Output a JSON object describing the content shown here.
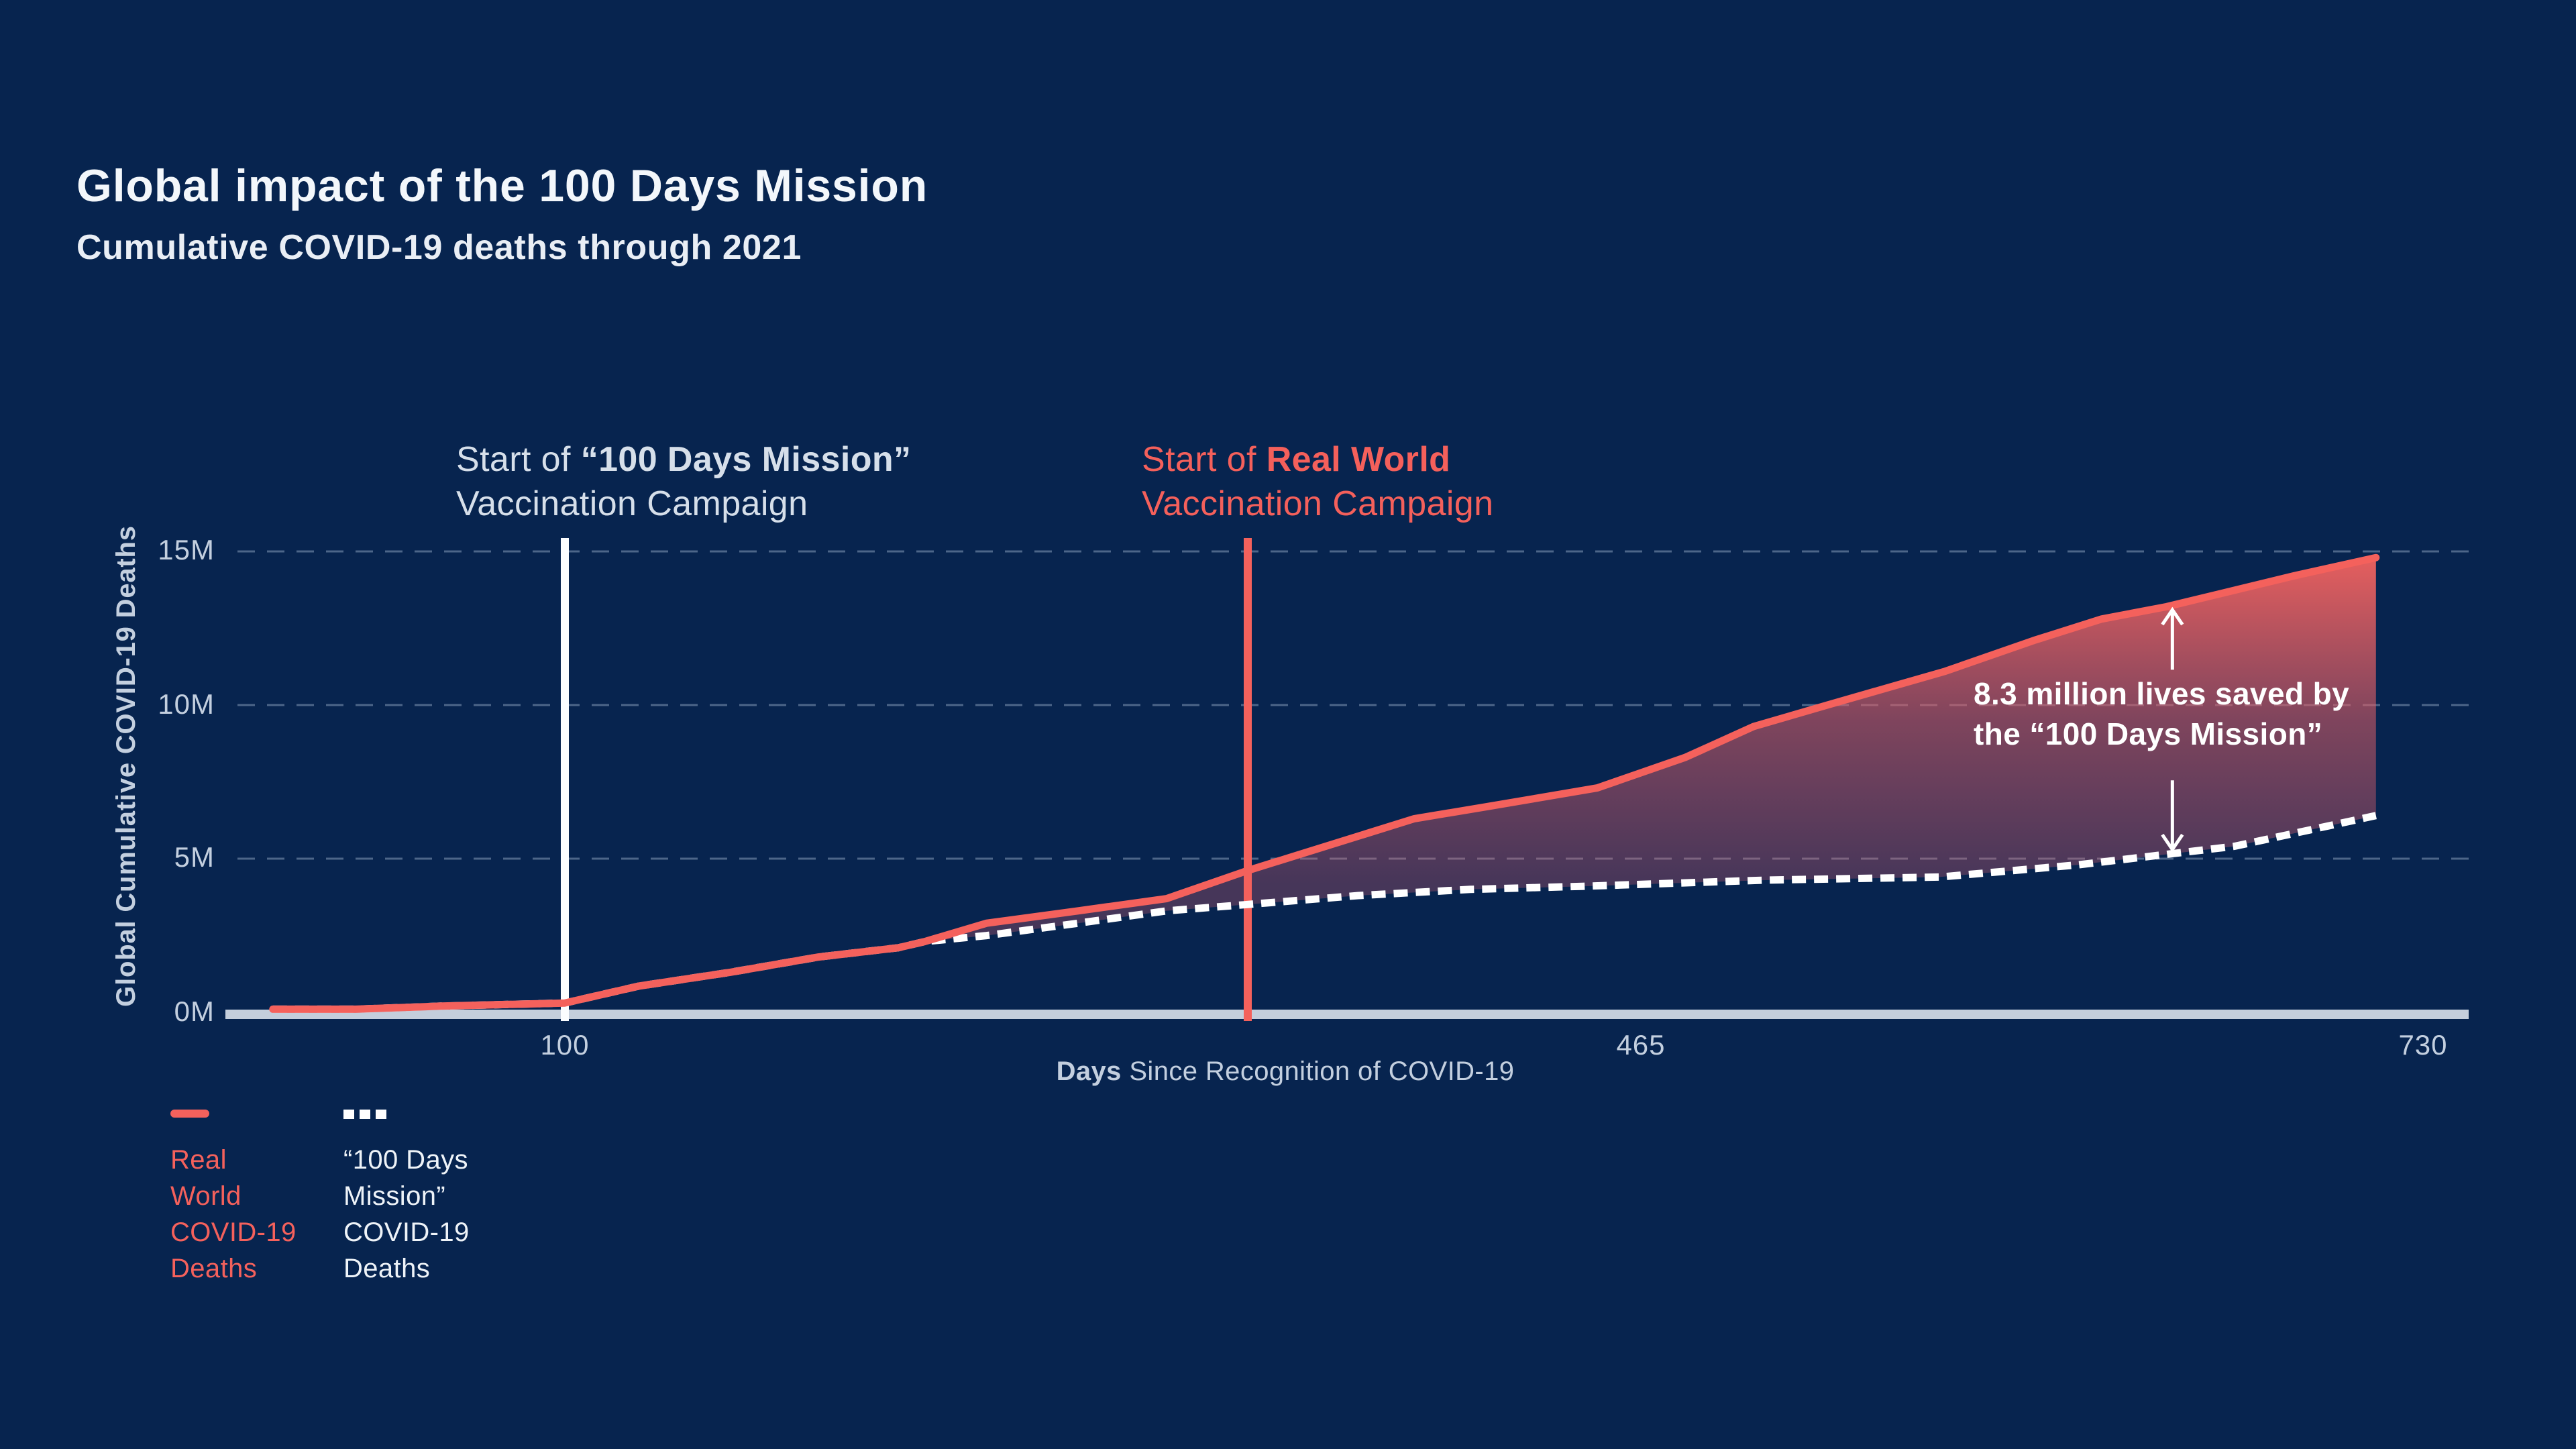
{
  "page": {
    "background": "#07244f",
    "accent": "#f4615c",
    "text_light": "#f3f7fb",
    "text_muted": "#c3cfdf"
  },
  "header": {
    "title": "Global impact of the 100 Days Mission",
    "subtitle": "Cumulative COVID-19 deaths through 2021"
  },
  "annotations": {
    "mission": {
      "prefix": "Start of ",
      "bold": "“100 Days Mission”",
      "line2": "Vaccination Campaign"
    },
    "real_world": {
      "prefix": "Start of ",
      "bold": "Real World",
      "line2": "Vaccination Campaign"
    },
    "lives_saved": {
      "line1": "8.3 million lives saved by",
      "line2": "the “100 Days Mission”"
    }
  },
  "chart_data": {
    "type": "area",
    "title": "Global impact of the 100 Days Mission",
    "subtitle": "Cumulative COVID-19 deaths through 2021",
    "xlabel_bold": "Days",
    "xlabel_rest": " Since Recognition of COVID-19",
    "ylabel": "Global Cumulative COVID-19 Deaths",
    "unit": "million cumulative deaths",
    "xlim": [
      0,
      730
    ],
    "ylim": [
      0,
      15
    ],
    "grid_values": [
      15,
      10,
      5
    ],
    "x_ticks": [
      {
        "value": 100,
        "label": "100"
      },
      {
        "value": 465,
        "label": "465"
      },
      {
        "value": 730,
        "label": "730"
      }
    ],
    "y_ticks": [
      {
        "value": 15,
        "label": "15M"
      },
      {
        "value": 10,
        "label": "10M"
      },
      {
        "value": 5,
        "label": "5M"
      },
      {
        "value": 0,
        "label": "0M"
      }
    ],
    "series": [
      {
        "name": "Real World COVID-19 Deaths",
        "style": "solid",
        "color": "#f4615c",
        "points": [
          [
            1,
            0.1
          ],
          [
            29,
            0.1
          ],
          [
            58,
            0.2
          ],
          [
            100,
            0.3
          ],
          [
            125,
            0.85
          ],
          [
            156,
            1.3
          ],
          [
            186,
            1.8
          ],
          [
            213,
            2.1
          ],
          [
            222,
            2.3
          ],
          [
            243,
            2.9
          ],
          [
            274,
            3.3
          ],
          [
            304,
            3.7
          ],
          [
            331,
            4.6
          ],
          [
            388,
            6.3
          ],
          [
            413,
            6.7
          ],
          [
            450,
            7.3
          ],
          [
            480,
            8.3
          ],
          [
            503,
            9.3
          ],
          [
            528,
            10.0
          ],
          [
            568,
            11.1
          ],
          [
            598,
            12.1
          ],
          [
            621,
            12.8
          ],
          [
            643,
            13.2
          ],
          [
            686,
            14.2
          ],
          [
            714,
            14.8
          ]
        ]
      },
      {
        "name": "“100 Days Mission” COVID-19 Deaths",
        "style": "dashed",
        "color": "#ffffff",
        "points": [
          [
            1,
            0.1
          ],
          [
            29,
            0.1
          ],
          [
            58,
            0.2
          ],
          [
            100,
            0.3
          ],
          [
            125,
            0.85
          ],
          [
            156,
            1.3
          ],
          [
            186,
            1.8
          ],
          [
            213,
            2.1
          ],
          [
            222,
            2.3
          ],
          [
            243,
            2.5
          ],
          [
            274,
            2.9
          ],
          [
            304,
            3.3
          ],
          [
            330,
            3.5
          ],
          [
            369,
            3.8
          ],
          [
            407,
            4.0
          ],
          [
            445,
            4.1
          ],
          [
            507,
            4.3
          ],
          [
            566,
            4.4
          ],
          [
            613,
            4.8
          ],
          [
            666,
            5.4
          ],
          [
            714,
            6.4
          ]
        ]
      }
    ],
    "divergence_day": 222,
    "vlines": [
      {
        "day": 100,
        "color": "#fbfdff",
        "name": "mission-campaign-vline"
      },
      {
        "day": 331.5,
        "color": "#f4615c",
        "name": "real-world-campaign-vline"
      }
    ],
    "saved_arrow": {
      "day": 645,
      "upper_from": 11.15,
      "upper_to": 13.1,
      "lower_from": 7.55,
      "lower_to": 5.3
    },
    "area_gradient": {
      "top": "#f2625e",
      "mid": "#e15f68",
      "bottom": "#d85f70"
    },
    "legend_position": "bottom-left",
    "grid": "dashed-horizontal"
  },
  "legend": {
    "items": [
      {
        "swatch": "dash",
        "color": "#f4615c",
        "lines": [
          "Real",
          "World",
          "COVID-19",
          "Deaths"
        ]
      },
      {
        "swatch": "dots",
        "color": "#eef3f8",
        "lines": [
          "“100 Days",
          "Mission”",
          "COVID-19",
          "Deaths"
        ]
      }
    ]
  }
}
